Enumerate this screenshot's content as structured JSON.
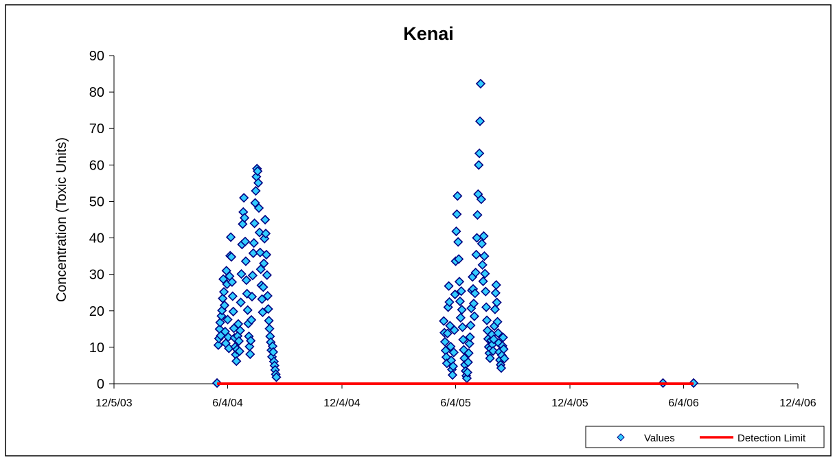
{
  "chart_data": {
    "type": "scatter",
    "title": "Kenai",
    "xlabel": "",
    "ylabel": "Concentration (Toxic Units)",
    "x_axis_type": "date",
    "xlim": [
      "2003-12-05",
      "2006-12-04"
    ],
    "ylim": [
      0,
      90
    ],
    "y_ticks": [
      0,
      10,
      20,
      30,
      40,
      50,
      60,
      70,
      80,
      90
    ],
    "x_ticks": [
      {
        "date": "2003-12-05",
        "label": "12/5/03"
      },
      {
        "date": "2004-06-04",
        "label": "6/4/04"
      },
      {
        "date": "2004-12-04",
        "label": "12/4/04"
      },
      {
        "date": "2005-06-04",
        "label": "6/4/05"
      },
      {
        "date": "2005-12-04",
        "label": "12/4/05"
      },
      {
        "date": "2006-06-04",
        "label": "6/4/06"
      },
      {
        "date": "2006-12-04",
        "label": "12/4/06"
      }
    ],
    "grid": false,
    "legend_position": "bottom-right",
    "series": [
      {
        "name": "Values",
        "kind": "scatter",
        "marker": "diamond",
        "fill_color": "#33ccff",
        "edge_color": "#000080",
        "points": [
          [
            "2004-05-18",
            0.2
          ],
          [
            "2004-05-20",
            10.6
          ],
          [
            "2004-05-21",
            12.4
          ],
          [
            "2004-05-22",
            15.0
          ],
          [
            "2004-05-23",
            16.8
          ],
          [
            "2004-05-24",
            13.2
          ],
          [
            "2004-05-25",
            18.6
          ],
          [
            "2004-05-26",
            20.1
          ],
          [
            "2004-05-27",
            23.4
          ],
          [
            "2004-05-28",
            28.7
          ],
          [
            "2004-05-29",
            25.2
          ],
          [
            "2004-05-30",
            21.5
          ],
          [
            "2004-05-31",
            14.3
          ],
          [
            "2004-06-01",
            11.1
          ],
          [
            "2004-06-02",
            31.0
          ],
          [
            "2004-06-03",
            27.3
          ],
          [
            "2004-06-04",
            17.6
          ],
          [
            "2004-06-05",
            12.8
          ],
          [
            "2004-06-06",
            9.7
          ],
          [
            "2004-06-07",
            29.5
          ],
          [
            "2004-06-08",
            35.1
          ],
          [
            "2004-06-09",
            40.2
          ],
          [
            "2004-06-10",
            34.8
          ],
          [
            "2004-06-11",
            27.9
          ],
          [
            "2004-06-12",
            24.0
          ],
          [
            "2004-06-13",
            19.8
          ],
          [
            "2004-06-14",
            15.2
          ],
          [
            "2004-06-15",
            12.6
          ],
          [
            "2004-06-16",
            10.1
          ],
          [
            "2004-06-17",
            8.0
          ],
          [
            "2004-06-18",
            6.2
          ],
          [
            "2004-06-19",
            9.4
          ],
          [
            "2004-06-20",
            13.1
          ],
          [
            "2004-06-21",
            16.4
          ],
          [
            "2004-06-22",
            11.7
          ],
          [
            "2004-06-23",
            8.9
          ],
          [
            "2004-06-24",
            14.6
          ],
          [
            "2004-06-25",
            22.3
          ],
          [
            "2004-06-26",
            30.1
          ],
          [
            "2004-06-27",
            38.2
          ],
          [
            "2004-06-28",
            43.8
          ],
          [
            "2004-06-29",
            47.1
          ],
          [
            "2004-06-30",
            51.0
          ],
          [
            "2004-07-01",
            45.5
          ],
          [
            "2004-07-02",
            39.0
          ],
          [
            "2004-07-03",
            33.6
          ],
          [
            "2004-07-04",
            28.4
          ],
          [
            "2004-07-05",
            24.7
          ],
          [
            "2004-07-06",
            20.2
          ],
          [
            "2004-07-07",
            16.5
          ],
          [
            "2004-07-08",
            13.0
          ],
          [
            "2004-07-09",
            10.2
          ],
          [
            "2004-07-10",
            8.1
          ],
          [
            "2004-07-11",
            11.8
          ],
          [
            "2004-07-12",
            17.5
          ],
          [
            "2004-07-13",
            23.9
          ],
          [
            "2004-07-14",
            29.7
          ],
          [
            "2004-07-15",
            35.8
          ],
          [
            "2004-07-16",
            38.6
          ],
          [
            "2004-07-17",
            44.0
          ],
          [
            "2004-07-18",
            49.6
          ],
          [
            "2004-07-19",
            52.9
          ],
          [
            "2004-07-20",
            56.8
          ],
          [
            "2004-07-21",
            59.0
          ],
          [
            "2004-07-22",
            58.3
          ],
          [
            "2004-07-23",
            55.1
          ],
          [
            "2004-07-24",
            48.2
          ],
          [
            "2004-07-25",
            41.5
          ],
          [
            "2004-07-26",
            36.0
          ],
          [
            "2004-07-27",
            31.4
          ],
          [
            "2004-07-28",
            27.0
          ],
          [
            "2004-07-29",
            23.2
          ],
          [
            "2004-07-30",
            19.6
          ],
          [
            "2004-07-31",
            26.5
          ],
          [
            "2004-08-01",
            33.0
          ],
          [
            "2004-08-02",
            39.8
          ],
          [
            "2004-08-03",
            45.0
          ],
          [
            "2004-08-04",
            41.2
          ],
          [
            "2004-08-05",
            35.4
          ],
          [
            "2004-08-06",
            29.8
          ],
          [
            "2004-08-07",
            24.1
          ],
          [
            "2004-08-08",
            20.5
          ],
          [
            "2004-08-09",
            17.3
          ],
          [
            "2004-08-10",
            15.1
          ],
          [
            "2004-08-11",
            13.0
          ],
          [
            "2004-08-12",
            11.4
          ],
          [
            "2004-08-13",
            9.2
          ],
          [
            "2004-08-14",
            7.4
          ],
          [
            "2004-08-15",
            10.3
          ],
          [
            "2004-08-16",
            8.7
          ],
          [
            "2004-08-17",
            6.1
          ],
          [
            "2004-08-18",
            5.0
          ],
          [
            "2004-08-19",
            3.8
          ],
          [
            "2004-08-20",
            2.6
          ],
          [
            "2004-08-21",
            1.8
          ],
          [
            "2005-05-16",
            17.2
          ],
          [
            "2005-05-17",
            14.0
          ],
          [
            "2005-05-18",
            11.5
          ],
          [
            "2005-05-19",
            9.1
          ],
          [
            "2005-05-20",
            7.3
          ],
          [
            "2005-05-21",
            5.6
          ],
          [
            "2005-05-22",
            13.8
          ],
          [
            "2005-05-23",
            21.0
          ],
          [
            "2005-05-24",
            26.8
          ],
          [
            "2005-05-25",
            22.4
          ],
          [
            "2005-05-26",
            15.9
          ],
          [
            "2005-05-27",
            10.2
          ],
          [
            "2005-05-28",
            6.4
          ],
          [
            "2005-05-29",
            3.9
          ],
          [
            "2005-05-30",
            2.4
          ],
          [
            "2005-05-31",
            4.8
          ],
          [
            "2005-06-01",
            8.6
          ],
          [
            "2005-06-02",
            14.7
          ],
          [
            "2005-06-03",
            24.5
          ],
          [
            "2005-06-04",
            33.6
          ],
          [
            "2005-06-05",
            41.8
          ],
          [
            "2005-06-06",
            46.5
          ],
          [
            "2005-06-07",
            51.5
          ],
          [
            "2005-06-08",
            38.9
          ],
          [
            "2005-06-09",
            34.2
          ],
          [
            "2005-06-10",
            28.0
          ],
          [
            "2005-06-11",
            22.6
          ],
          [
            "2005-06-12",
            18.1
          ],
          [
            "2005-06-13",
            25.4
          ],
          [
            "2005-06-14",
            20.3
          ],
          [
            "2005-06-15",
            15.5
          ],
          [
            "2005-06-16",
            12.1
          ],
          [
            "2005-06-17",
            9.3
          ],
          [
            "2005-06-18",
            7.0
          ],
          [
            "2005-06-19",
            5.2
          ],
          [
            "2005-06-20",
            3.5
          ],
          [
            "2005-06-21",
            2.2
          ],
          [
            "2005-06-22",
            1.5
          ],
          [
            "2005-06-23",
            3.1
          ],
          [
            "2005-06-24",
            5.9
          ],
          [
            "2005-06-25",
            8.4
          ],
          [
            "2005-06-26",
            11.0
          ],
          [
            "2005-06-27",
            12.8
          ],
          [
            "2005-06-28",
            16.0
          ],
          [
            "2005-06-29",
            20.7
          ],
          [
            "2005-06-30",
            25.6
          ],
          [
            "2005-07-01",
            29.3
          ],
          [
            "2005-07-02",
            26.0
          ],
          [
            "2005-07-03",
            22.0
          ],
          [
            "2005-07-04",
            18.5
          ],
          [
            "2005-07-05",
            24.8
          ],
          [
            "2005-07-06",
            30.5
          ],
          [
            "2005-07-07",
            35.4
          ],
          [
            "2005-07-08",
            40.0
          ],
          [
            "2005-07-09",
            46.3
          ],
          [
            "2005-07-10",
            52.0
          ],
          [
            "2005-07-11",
            60.0
          ],
          [
            "2005-07-12",
            63.2
          ],
          [
            "2005-07-13",
            72.0
          ],
          [
            "2005-07-14",
            82.3
          ],
          [
            "2005-07-15",
            50.6
          ],
          [
            "2005-07-16",
            38.4
          ],
          [
            "2005-07-17",
            32.6
          ],
          [
            "2005-07-18",
            28.1
          ],
          [
            "2005-07-19",
            40.5
          ],
          [
            "2005-07-20",
            35.0
          ],
          [
            "2005-07-21",
            30.2
          ],
          [
            "2005-07-22",
            25.3
          ],
          [
            "2005-07-23",
            21.0
          ],
          [
            "2005-07-24",
            17.4
          ],
          [
            "2005-07-25",
            14.6
          ],
          [
            "2005-07-26",
            12.3
          ],
          [
            "2005-07-27",
            10.1
          ],
          [
            "2005-07-28",
            8.4
          ],
          [
            "2005-07-29",
            7.0
          ],
          [
            "2005-07-30",
            9.6
          ],
          [
            "2005-07-31",
            11.9
          ],
          [
            "2005-08-01",
            13.5
          ],
          [
            "2005-08-02",
            10.8
          ],
          [
            "2005-08-03",
            9.0
          ],
          [
            "2005-08-04",
            12.2
          ],
          [
            "2005-08-05",
            15.8
          ],
          [
            "2005-08-06",
            20.4
          ],
          [
            "2005-08-07",
            24.9
          ],
          [
            "2005-08-08",
            27.1
          ],
          [
            "2005-08-09",
            22.3
          ],
          [
            "2005-08-10",
            17.0
          ],
          [
            "2005-08-11",
            13.9
          ],
          [
            "2005-08-12",
            11.2
          ],
          [
            "2005-08-13",
            8.7
          ],
          [
            "2005-08-14",
            6.5
          ],
          [
            "2005-08-15",
            5.2
          ],
          [
            "2005-08-16",
            4.3
          ],
          [
            "2005-08-17",
            7.8
          ],
          [
            "2005-08-18",
            10.4
          ],
          [
            "2005-08-19",
            12.7
          ],
          [
            "2005-08-20",
            9.5
          ],
          [
            "2005-08-21",
            6.9
          ],
          [
            "2006-05-02",
            0.2
          ],
          [
            "2006-06-20",
            0.2
          ]
        ]
      },
      {
        "name": "Detection Limit",
        "kind": "line",
        "color": "#ff0000",
        "points": [
          [
            "2004-05-18",
            0
          ],
          [
            "2006-06-20",
            0
          ]
        ]
      }
    ]
  }
}
